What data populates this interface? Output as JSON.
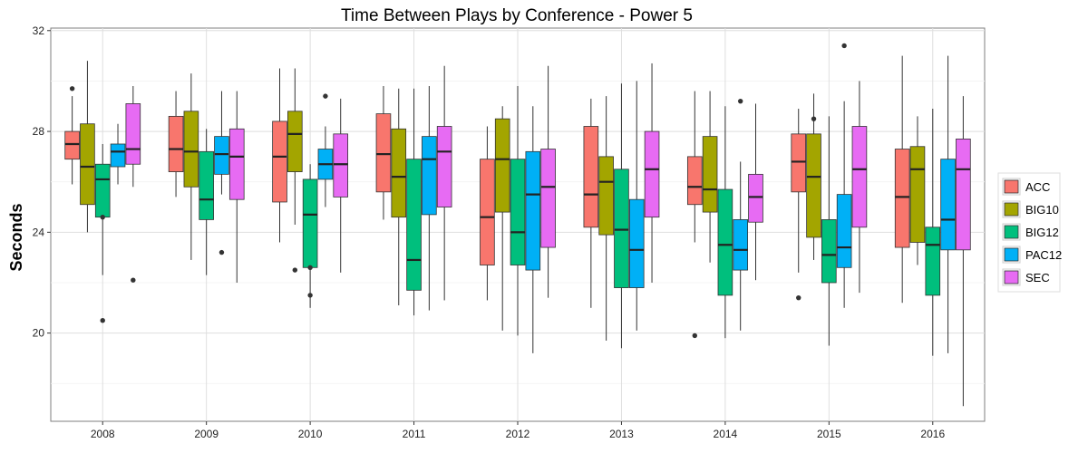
{
  "colors": {
    "ACC": "#F8766D",
    "BIG10": "#A3A500",
    "BIG12": "#00BF7D",
    "PAC12": "#00B0F6",
    "SEC": "#E76BF3"
  },
  "chart_data": {
    "type": "box",
    "title": "Time Between Plays by Conference - Power 5",
    "xlabel": "",
    "ylabel": "Seconds",
    "ylim": [
      16.5,
      32.1
    ],
    "yticks": [
      20,
      24,
      28,
      32
    ],
    "grid": true,
    "legend_position": "right",
    "categories": [
      "2008",
      "2009",
      "2010",
      "2011",
      "2012",
      "2013",
      "2014",
      "2015",
      "2016"
    ],
    "series": [
      {
        "name": "ACC",
        "boxes": [
          {
            "min": 25.9,
            "q1": 26.9,
            "median": 27.5,
            "q3": 28.0,
            "max": 29.4,
            "outliers": [
              29.7
            ]
          },
          {
            "min": 25.4,
            "q1": 26.4,
            "median": 27.3,
            "q3": 28.6,
            "max": 29.6,
            "outliers": []
          },
          {
            "min": 23.6,
            "q1": 25.2,
            "median": 27.0,
            "q3": 28.4,
            "max": 30.5,
            "outliers": []
          },
          {
            "min": 24.5,
            "q1": 25.6,
            "median": 27.1,
            "q3": 28.7,
            "max": 29.8,
            "outliers": []
          },
          {
            "min": 21.3,
            "q1": 22.7,
            "median": 24.6,
            "q3": 26.9,
            "max": 28.2,
            "outliers": []
          },
          {
            "min": 21.0,
            "q1": 24.2,
            "median": 25.5,
            "q3": 28.2,
            "max": 29.3,
            "outliers": []
          },
          {
            "min": 23.6,
            "q1": 25.1,
            "median": 25.8,
            "q3": 27.0,
            "max": 29.6,
            "outliers": [
              19.9
            ]
          },
          {
            "min": 22.4,
            "q1": 25.6,
            "median": 26.8,
            "q3": 27.9,
            "max": 28.9,
            "outliers": [
              21.4
            ]
          },
          {
            "min": 21.2,
            "q1": 23.4,
            "median": 25.4,
            "q3": 27.3,
            "max": 31.0,
            "outliers": []
          }
        ]
      },
      {
        "name": "BIG10",
        "boxes": [
          {
            "min": 24.0,
            "q1": 25.1,
            "median": 26.6,
            "q3": 28.3,
            "max": 30.8,
            "outliers": []
          },
          {
            "min": 22.9,
            "q1": 25.8,
            "median": 27.2,
            "q3": 28.8,
            "max": 30.3,
            "outliers": []
          },
          {
            "min": 24.3,
            "q1": 26.4,
            "median": 27.9,
            "q3": 28.8,
            "max": 30.5,
            "outliers": [
              22.5
            ]
          },
          {
            "min": 21.1,
            "q1": 24.6,
            "median": 26.2,
            "q3": 28.1,
            "max": 29.7,
            "outliers": []
          },
          {
            "min": 20.1,
            "q1": 24.8,
            "median": 26.9,
            "q3": 28.5,
            "max": 29.0,
            "outliers": []
          },
          {
            "min": 19.7,
            "q1": 23.9,
            "median": 26.0,
            "q3": 27.0,
            "max": 29.4,
            "outliers": []
          },
          {
            "min": 22.8,
            "q1": 24.8,
            "median": 25.7,
            "q3": 27.8,
            "max": 29.6,
            "outliers": []
          },
          {
            "min": 22.9,
            "q1": 23.8,
            "median": 26.2,
            "q3": 27.9,
            "max": 29.5,
            "outliers": [
              28.5
            ]
          },
          {
            "min": 22.7,
            "q1": 23.6,
            "median": 26.5,
            "q3": 27.4,
            "max": 28.6,
            "outliers": []
          }
        ]
      },
      {
        "name": "BIG12",
        "boxes": [
          {
            "min": 22.3,
            "q1": 24.6,
            "median": 26.1,
            "q3": 26.7,
            "max": 27.5,
            "outliers": [
              24.6,
              20.5
            ]
          },
          {
            "min": 22.3,
            "q1": 24.5,
            "median": 25.3,
            "q3": 27.2,
            "max": 28.1,
            "outliers": []
          },
          {
            "min": 21.0,
            "q1": 22.6,
            "median": 24.7,
            "q3": 26.1,
            "max": 26.7,
            "outliers": [
              22.6,
              21.5
            ]
          },
          {
            "min": 20.7,
            "q1": 21.7,
            "median": 22.9,
            "q3": 26.9,
            "max": 29.7,
            "outliers": []
          },
          {
            "min": 19.9,
            "q1": 22.7,
            "median": 24.0,
            "q3": 26.9,
            "max": 29.8,
            "outliers": []
          },
          {
            "min": 19.4,
            "q1": 21.8,
            "median": 24.1,
            "q3": 26.5,
            "max": 29.9,
            "outliers": []
          },
          {
            "min": 19.8,
            "q1": 21.5,
            "median": 23.5,
            "q3": 25.7,
            "max": 29.0,
            "outliers": []
          },
          {
            "min": 19.5,
            "q1": 22.0,
            "median": 23.1,
            "q3": 24.5,
            "max": 28.6,
            "outliers": []
          },
          {
            "min": 19.1,
            "q1": 21.5,
            "median": 23.5,
            "q3": 24.2,
            "max": 28.9,
            "outliers": []
          }
        ]
      },
      {
        "name": "PAC12",
        "boxes": [
          {
            "min": 25.9,
            "q1": 26.6,
            "median": 27.2,
            "q3": 27.5,
            "max": 28.3,
            "outliers": []
          },
          {
            "min": 25.5,
            "q1": 26.3,
            "median": 27.1,
            "q3": 27.8,
            "max": 29.6,
            "outliers": [
              23.2
            ]
          },
          {
            "min": 25.0,
            "q1": 26.1,
            "median": 26.7,
            "q3": 27.3,
            "max": 28.2,
            "outliers": [
              29.4
            ]
          },
          {
            "min": 20.9,
            "q1": 24.7,
            "median": 26.9,
            "q3": 27.8,
            "max": 29.8,
            "outliers": []
          },
          {
            "min": 19.2,
            "q1": 22.5,
            "median": 25.5,
            "q3": 27.2,
            "max": 29.0,
            "outliers": []
          },
          {
            "min": 20.1,
            "q1": 21.8,
            "median": 23.3,
            "q3": 25.3,
            "max": 30.0,
            "outliers": []
          },
          {
            "min": 20.1,
            "q1": 22.5,
            "median": 23.3,
            "q3": 24.5,
            "max": 26.8,
            "outliers": [
              29.2
            ]
          },
          {
            "min": 21.0,
            "q1": 22.6,
            "median": 23.4,
            "q3": 25.5,
            "max": 29.2,
            "outliers": [
              31.4
            ]
          },
          {
            "min": 19.2,
            "q1": 23.3,
            "median": 24.5,
            "q3": 26.9,
            "max": 31.0,
            "outliers": []
          }
        ]
      },
      {
        "name": "SEC",
        "boxes": [
          {
            "min": 25.8,
            "q1": 26.7,
            "median": 27.3,
            "q3": 29.1,
            "max": 29.8,
            "outliers": [
              22.1
            ]
          },
          {
            "min": 22.0,
            "q1": 25.3,
            "median": 27.0,
            "q3": 28.1,
            "max": 29.6,
            "outliers": []
          },
          {
            "min": 22.4,
            "q1": 25.4,
            "median": 26.7,
            "q3": 27.9,
            "max": 29.3,
            "outliers": []
          },
          {
            "min": 21.3,
            "q1": 25.0,
            "median": 27.2,
            "q3": 28.2,
            "max": 30.6,
            "outliers": []
          },
          {
            "min": 21.4,
            "q1": 23.4,
            "median": 25.8,
            "q3": 27.3,
            "max": 30.6,
            "outliers": []
          },
          {
            "min": 22.0,
            "q1": 24.6,
            "median": 26.5,
            "q3": 28.0,
            "max": 30.7,
            "outliers": []
          },
          {
            "min": 22.1,
            "q1": 24.4,
            "median": 25.4,
            "q3": 26.3,
            "max": 29.1,
            "outliers": []
          },
          {
            "min": 21.6,
            "q1": 24.2,
            "median": 26.5,
            "q3": 28.2,
            "max": 30.0,
            "outliers": []
          },
          {
            "min": 17.1,
            "q1": 23.3,
            "median": 26.5,
            "q3": 27.7,
            "max": 29.4,
            "outliers": []
          }
        ]
      }
    ]
  }
}
